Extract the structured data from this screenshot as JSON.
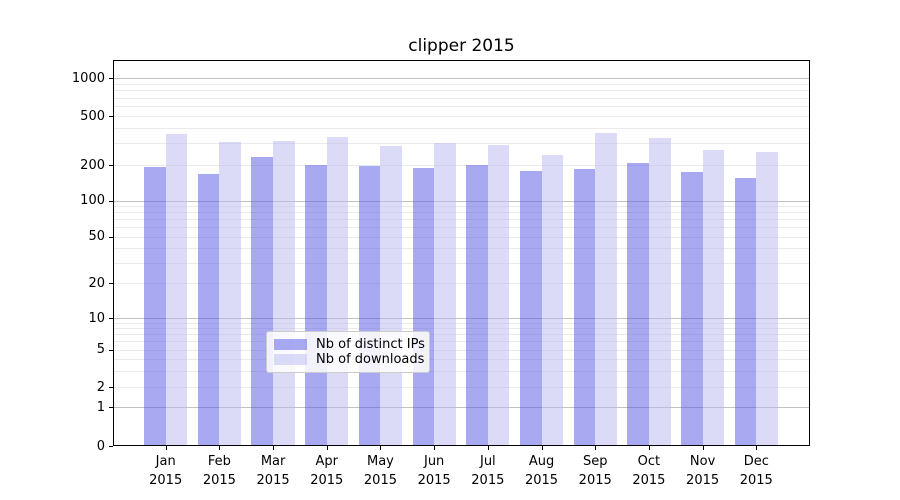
{
  "chart_data": {
    "type": "bar",
    "title": "clipper 2015",
    "x_months": [
      "Jan",
      "Feb",
      "Mar",
      "Apr",
      "May",
      "Jun",
      "Jul",
      "Aug",
      "Sep",
      "Oct",
      "Nov",
      "Dec"
    ],
    "x_year": "2015",
    "series": [
      {
        "name": "Nb of distinct IPs",
        "color": "rgba(84,84,229,0.5)",
        "solid_color": "#a9a9f2",
        "values": [
          191,
          168,
          233,
          201,
          196,
          189,
          201,
          177,
          184,
          206,
          176,
          155
        ]
      },
      {
        "name": "Nb of downloads",
        "color": "rgba(183,183,241,0.5)",
        "solid_color": "#dbdbf8",
        "values": [
          360,
          305,
          315,
          335,
          288,
          300,
          291,
          241,
          365,
          330,
          265,
          255
        ]
      }
    ],
    "yscale": "symlog",
    "yticks": [
      1000,
      500,
      200,
      100,
      50,
      20,
      10,
      5,
      2,
      1,
      0
    ],
    "ylim": [
      0,
      1400
    ],
    "grid": "both",
    "legend_location": "lower center",
    "axis_color": "#000000",
    "major_grid_color": "#c2c2c2",
    "minor_grid_color": "#eaeaea"
  }
}
